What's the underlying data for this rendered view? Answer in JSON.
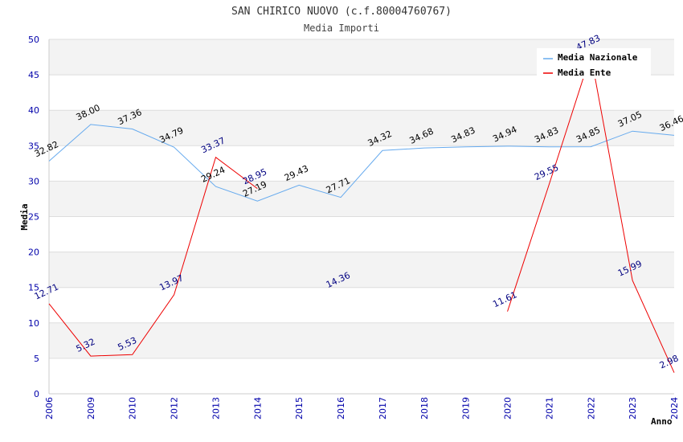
{
  "chart_data": {
    "type": "line",
    "title": "SAN CHIRICO NUOVO (c.f.80004760767)",
    "subtitle": "Media Importi",
    "xlabel": "Anno",
    "ylabel": "Media",
    "ylim": [
      0,
      50
    ],
    "yticks": [
      0,
      5,
      10,
      15,
      20,
      25,
      30,
      35,
      40,
      45,
      50
    ],
    "categories": [
      "2006",
      "2009",
      "2010",
      "2012",
      "2013",
      "2014",
      "2015",
      "2016",
      "2017",
      "2018",
      "2019",
      "2020",
      "2021",
      "2022",
      "2023",
      "2024"
    ],
    "series": [
      {
        "name": "Media Nazionale",
        "color": "#66aaee",
        "values": [
          32.82,
          38.0,
          37.36,
          34.79,
          29.24,
          27.19,
          29.43,
          27.71,
          34.32,
          34.68,
          34.83,
          34.94,
          34.83,
          34.85,
          37.05,
          36.46
        ],
        "labels": [
          "32.82",
          "38.00",
          "37.36",
          "34.79",
          "29.24",
          "27.19",
          "29.43",
          "27.71",
          "34.32",
          "34.68",
          "34.83",
          "34.94",
          "34.83",
          "34.85",
          "37.05",
          "36.46"
        ]
      },
      {
        "name": "Media Ente",
        "color": "#ee0000",
        "values": [
          12.71,
          5.32,
          5.53,
          13.97,
          33.37,
          28.95,
          null,
          14.36,
          null,
          null,
          null,
          11.61,
          29.55,
          47.83,
          15.99,
          2.98
        ],
        "labels": [
          "12.71",
          "5.32",
          "5.53",
          "13.97",
          "33.37",
          "28.95",
          "",
          "14.36",
          "",
          "",
          "",
          "11.61",
          "29.55",
          "47.83",
          "15.99",
          "2.98"
        ]
      }
    ],
    "legend_position": "top-right",
    "grid": true
  }
}
